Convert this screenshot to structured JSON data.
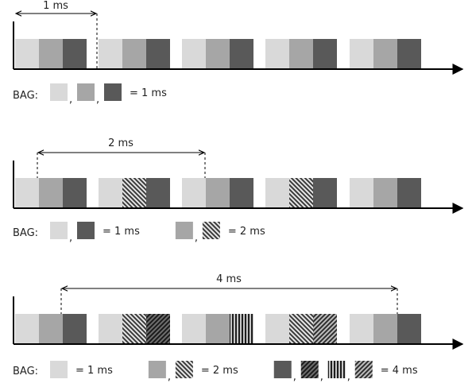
{
  "colors": {
    "light": "#d9d9d9",
    "mid": "#a6a6a6",
    "dark": "#595959",
    "axis": "#000000",
    "background": "#ffffff"
  },
  "panels": [
    {
      "id": "p1",
      "interval_label": "1 ms",
      "slots": [
        [
          "light",
          "mid",
          "dark"
        ],
        [
          "light",
          "mid",
          "dark"
        ],
        [
          "light",
          "mid",
          "dark"
        ],
        [
          "light",
          "mid",
          "dark"
        ],
        [
          "light",
          "mid",
          "dark"
        ]
      ],
      "bag_prefix": "BAG:",
      "legend_groups": [
        {
          "items": [
            "light",
            "mid",
            "dark"
          ],
          "label": "= 1 ms"
        }
      ]
    },
    {
      "id": "p2",
      "interval_label": "2 ms",
      "slots": [
        [
          "light",
          "mid",
          "dark"
        ],
        [
          "light",
          "diag-back",
          "dark"
        ],
        [
          "light",
          "mid",
          "dark"
        ],
        [
          "light",
          "diag-back",
          "dark"
        ],
        [
          "light",
          "mid",
          "dark"
        ]
      ],
      "bag_prefix": "BAG:",
      "legend_groups": [
        {
          "items": [
            "light",
            "dark"
          ],
          "label": "= 1 ms"
        },
        {
          "items": [
            "mid",
            "diag-back"
          ],
          "label": "= 2 ms"
        }
      ]
    },
    {
      "id": "p3",
      "interval_label": "4 ms",
      "slots": [
        [
          "light",
          "mid",
          "dark"
        ],
        [
          "light",
          "diag-back",
          "diag-fwd-dark"
        ],
        [
          "light",
          "mid",
          "vert"
        ],
        [
          "light",
          "diag-back",
          "diag-fwd"
        ],
        [
          "light",
          "mid",
          "dark"
        ]
      ],
      "bag_prefix": "BAG:",
      "legend_groups": [
        {
          "items": [
            "light"
          ],
          "label": "= 1 ms"
        },
        {
          "items": [
            "mid",
            "diag-back"
          ],
          "label": "= 2 ms"
        },
        {
          "items": [
            "dark",
            "diag-fwd-dark",
            "vert",
            "diag-fwd"
          ],
          "label": "= 4 ms"
        }
      ]
    }
  ]
}
